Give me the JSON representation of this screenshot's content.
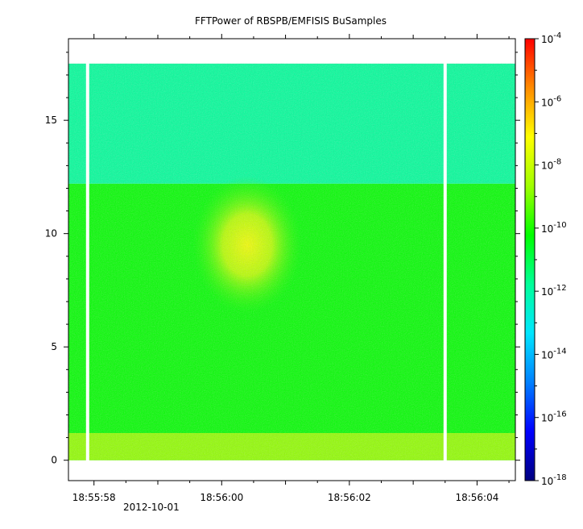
{
  "chart_data": {
    "type": "heatmap",
    "title": "FFTPower of RBSPB/EMFISIS  BuSamples",
    "xlabel": "",
    "ylabel": "",
    "x_axis": {
      "ticks": [
        "18:55:58",
        "18:56:00",
        "18:56:02",
        "18:56:04"
      ],
      "date_label": "2012-10-01",
      "range": [
        "18:55:57.6",
        "18:56:04.6"
      ]
    },
    "y_axis": {
      "ticks": [
        0,
        5,
        10,
        15
      ],
      "ylim": [
        -0.9,
        18.6
      ]
    },
    "colorbar": {
      "scale": "log",
      "range": [
        1e-18,
        0.0001
      ],
      "ticks": [
        {
          "base": "10",
          "exp": "-4"
        },
        {
          "base": "10",
          "exp": "-6"
        },
        {
          "base": "10",
          "exp": "-8"
        },
        {
          "base": "10",
          "exp": "-10"
        },
        {
          "base": "10",
          "exp": "-12"
        },
        {
          "base": "10",
          "exp": "-14"
        },
        {
          "base": "10",
          "exp": "-16"
        },
        {
          "base": "10",
          "exp": "-18"
        }
      ],
      "colormap": [
        "#00007f",
        "#0000ff",
        "#0080ff",
        "#00e6ff",
        "#00ff99",
        "#00ff00",
        "#a0ff00",
        "#ffff00",
        "#ff8c00",
        "#ff0000"
      ]
    },
    "features": {
      "data_top_y": 17.5,
      "data_bottom_y": 0,
      "upper_band": {
        "y_range": [
          12.2,
          17.5
        ],
        "log_power": -11.8
      },
      "lower_band": {
        "y_range": [
          0,
          12.2
        ],
        "log_power": -10.2
      },
      "baseline": {
        "y_range": [
          0,
          1.2
        ],
        "log_power": -8.8
      },
      "enhancement": {
        "center_time": "18:56:00.4",
        "center_y": 9.5,
        "peak_log_power": -7.3
      },
      "data_gaps": [
        "18:55:57.9",
        "18:56:03.5"
      ]
    }
  }
}
